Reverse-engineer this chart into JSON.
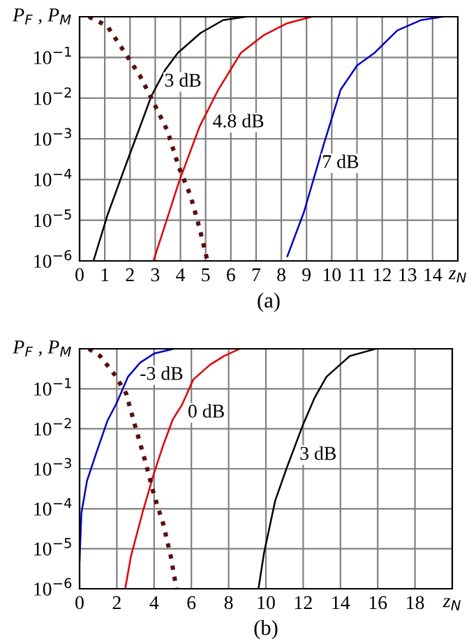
{
  "chart_data": [
    {
      "type": "line",
      "title": "(a)",
      "xlabel": "z$_{N}$",
      "ylabel": "P$_{F}$ , P$_{M}$",
      "log": "y",
      "grid": true,
      "xlim": [
        0,
        15
      ],
      "xticks": [
        0,
        1,
        2,
        3,
        4,
        5,
        6,
        7,
        8,
        9,
        10,
        11,
        12,
        13,
        14
      ],
      "ylim": [
        1e-06,
        1
      ],
      "yticks": [
        {
          "value": 1e-06,
          "label": "10$^{−6}$"
        },
        {
          "value": 1e-05,
          "label": "10$^{−5}$"
        },
        {
          "value": 0.0001,
          "label": "10$^{−4}$"
        },
        {
          "value": 0.001,
          "label": "10$^{−3}$"
        },
        {
          "value": 0.01,
          "label": "10$^{−2}$"
        },
        {
          "value": 0.1,
          "label": "10$^{−1}$"
        },
        {
          "value": 1,
          "label": null
        }
      ],
      "series": [
        {
          "color": "#000000",
          "line_style": "solid",
          "x": [
            0.55,
            1.1,
            1.8,
            2.4,
            2.84,
            3.4,
            3.9,
            4.8,
            5.7,
            6.6
          ],
          "values": [
            1e-06,
            1.3e-05,
            0.0002,
            0.002,
            0.011,
            0.05,
            0.13,
            0.4,
            0.83,
            1
          ]
        },
        {
          "color": "#e00000",
          "line_style": "solid",
          "x": [
            2.93,
            3.4,
            3.94,
            4.76,
            5.5,
            6.4,
            7.3,
            8.2,
            9.2
          ],
          "values": [
            1e-06,
            7.9e-06,
            8.7e-05,
            0.002,
            0.016,
            0.13,
            0.35,
            0.68,
            1
          ]
        },
        {
          "color": "#0000c0",
          "line_style": "solid",
          "x": [
            8.24,
            8.9,
            9.7,
            10.35,
            11,
            11.7,
            12.6,
            13.55,
            14.4
          ],
          "values": [
            1.3e-06,
            1.6e-05,
            0.00079,
            0.016,
            0.063,
            0.13,
            0.46,
            0.83,
            1
          ]
        },
        {
          "color": "#5a0f0f",
          "line_style": "dotted",
          "x": [
            0.37,
            1.1,
            1.8,
            2.4,
            2.93,
            3.48,
            3.94,
            4.4,
            4.76,
            5.07
          ],
          "values": [
            1,
            0.59,
            0.13,
            0.035,
            0.0079,
            0.0016,
            0.0002,
            4e-05,
            6.3e-06,
            1e-06
          ]
        }
      ],
      "annotations": [
        {
          "text": "3 dB",
          "x": 4.1,
          "y": 0.025
        },
        {
          "text": "4.8 dB",
          "x": 6.3,
          "y": 0.0025
        },
        {
          "text": "7 dB",
          "x": 10.35,
          "y": 0.00025
        }
      ]
    },
    {
      "type": "line",
      "title": "(b)",
      "xlabel": "z$_{N}$",
      "ylabel": "P$_{F}$ , P$_{M}$",
      "log": "y",
      "grid": true,
      "xlim": [
        0,
        20
      ],
      "xticks": [
        0,
        2,
        4,
        6,
        8,
        10,
        12,
        14,
        16,
        18
      ],
      "ylim": [
        1e-06,
        1
      ],
      "yticks": [
        {
          "value": 1e-06,
          "label": "10$^{−6}$"
        },
        {
          "value": 1e-05,
          "label": "10$^{−5}$"
        },
        {
          "value": 0.0001,
          "label": "10$^{−4}$"
        },
        {
          "value": 0.001,
          "label": "10$^{−3}$"
        },
        {
          "value": 0.01,
          "label": "10$^{−2}$"
        },
        {
          "value": 0.1,
          "label": "10$^{−1}$"
        },
        {
          "value": 1,
          "label": null
        }
      ],
      "series": [
        {
          "color": "#0000c0",
          "line_style": "solid",
          "x": [
            0,
            0.1,
            0.4,
            0.9,
            1.5,
            2.0,
            2.6,
            3.25,
            4.0,
            5.05
          ],
          "values": [
            5e-06,
            7.9e-05,
            0.0005,
            0.0025,
            0.016,
            0.045,
            0.2,
            0.45,
            0.76,
            1
          ]
        },
        {
          "color": "#e00000",
          "line_style": "solid",
          "x": [
            2.45,
            2.75,
            3.4,
            4.0,
            4.5,
            5.0,
            5.5,
            6.1,
            7.0,
            7.75,
            8.6
          ],
          "values": [
            1e-06,
            6.3e-06,
            8.7e-05,
            0.00079,
            0.004,
            0.017,
            0.04,
            0.17,
            0.4,
            0.66,
            1
          ]
        },
        {
          "color": "#000000",
          "line_style": "solid",
          "x": [
            9.6,
            9.9,
            10.5,
            11.1,
            12.0,
            12.6,
            13.25,
            14.5,
            15.9
          ],
          "values": [
            1e-06,
            7.9e-06,
            0.00016,
            0.001,
            0.013,
            0.058,
            0.2,
            0.66,
            1
          ]
        },
        {
          "color": "#5a0f0f",
          "line_style": "dotted",
          "x": [
            0.5,
            1.1,
            1.9,
            2.5,
            3.0,
            3.5,
            4.0,
            4.5,
            4.9,
            5.2
          ],
          "values": [
            1,
            0.66,
            0.22,
            0.076,
            0.011,
            0.0017,
            0.00022,
            4e-05,
            6.3e-06,
            1e-06
          ]
        }
      ],
      "annotations": [
        {
          "text": "-3 dB",
          "x": 4.4,
          "y": 0.22
        },
        {
          "text": "0 dB",
          "x": 6.8,
          "y": 0.025
        },
        {
          "text": "3 dB",
          "x": 12.8,
          "y": 0.0022
        }
      ]
    }
  ]
}
